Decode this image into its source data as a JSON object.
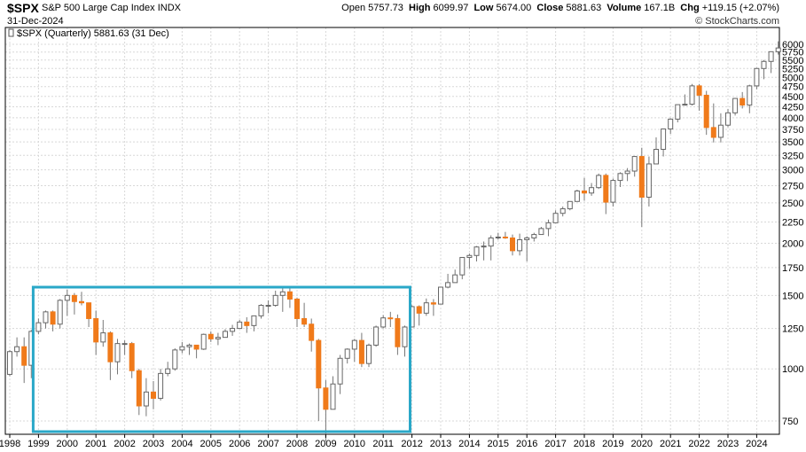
{
  "header": {
    "symbol": "$SPX",
    "name": "S&P 500 Large Cap Index",
    "exchange": "INDX",
    "date": "31-Dec-2024",
    "brand": "© StockCharts.com",
    "quote": {
      "open_label": "Open",
      "open": "5757.73",
      "high_label": "High",
      "high": "6099.97",
      "low_label": "Low",
      "low": "5674.00",
      "close_label": "Close",
      "close": "5881.63",
      "volume_label": "Volume",
      "volume": "167.1B",
      "chg_label": "Chg",
      "chg": "+119.15 (+2.07%)"
    }
  },
  "legend": {
    "text": "$SPX (Quarterly) 5881.63 (31 Dec)"
  },
  "colors": {
    "up": "#ffffff",
    "down": "#f07a1a",
    "wick": "#777777",
    "grid": "#d8d8d8",
    "highlight_box": "#2aa8c8"
  },
  "chart_data": {
    "type": "candlestick",
    "period": "quarterly",
    "y_axis": {
      "ticks": [
        750,
        1000,
        1250,
        1500,
        1750,
        2000,
        2250,
        2500,
        2750,
        3000,
        3250,
        3500,
        3750,
        4000,
        4250,
        4500,
        4750,
        5000,
        5250,
        5500,
        5750,
        6000
      ],
      "scale": "log",
      "ylim": [
        650,
        6300
      ]
    },
    "x_axis": {
      "ticks": [
        "1998",
        "1999",
        "2000",
        "2001",
        "2002",
        "2003",
        "2004",
        "2005",
        "2006",
        "2007",
        "2008",
        "2009",
        "2010",
        "2011",
        "2012",
        "2013",
        "2014",
        "2015",
        "2016",
        "2017",
        "2018",
        "2019",
        "2020",
        "2021",
        "2022",
        "2023",
        "2024"
      ]
    },
    "highlight": {
      "start": "1999-Q1",
      "end": "2011-Q4",
      "ymin": 750,
      "ymax": 1570
    },
    "start_quarter": "1998-Q1",
    "ohlc": [
      [
        970,
        1110,
        960,
        1100
      ],
      [
        1100,
        1190,
        1070,
        1130
      ],
      [
        1130,
        1190,
        925,
        1020
      ],
      [
        1020,
        1240,
        950,
        1230
      ],
      [
        1230,
        1320,
        1210,
        1290
      ],
      [
        1290,
        1380,
        1250,
        1370
      ],
      [
        1370,
        1380,
        1230,
        1280
      ],
      [
        1280,
        1470,
        1250,
        1460
      ],
      [
        1460,
        1550,
        1340,
        1500
      ],
      [
        1500,
        1520,
        1350,
        1450
      ],
      [
        1450,
        1530,
        1420,
        1440
      ],
      [
        1440,
        1440,
        1260,
        1320
      ],
      [
        1320,
        1380,
        1080,
        1160
      ],
      [
        1160,
        1310,
        1130,
        1220
      ],
      [
        1220,
        1230,
        940,
        1040
      ],
      [
        1040,
        1180,
        970,
        1150
      ],
      [
        1150,
        1170,
        1080,
        1150
      ],
      [
        1150,
        1160,
        950,
        990
      ],
      [
        990,
        1000,
        775,
        815
      ],
      [
        815,
        950,
        770,
        880
      ],
      [
        880,
        935,
        800,
        850
      ],
      [
        850,
        1000,
        840,
        975
      ],
      [
        975,
        1040,
        960,
        1000
      ],
      [
        1000,
        1120,
        990,
        1110
      ],
      [
        1110,
        1160,
        1090,
        1130
      ],
      [
        1130,
        1150,
        1080,
        1140
      ],
      [
        1140,
        1140,
        1060,
        1115
      ],
      [
        1115,
        1215,
        1110,
        1210
      ],
      [
        1210,
        1230,
        1160,
        1180
      ],
      [
        1180,
        1220,
        1140,
        1190
      ],
      [
        1190,
        1245,
        1190,
        1230
      ],
      [
        1230,
        1275,
        1200,
        1250
      ],
      [
        1250,
        1310,
        1250,
        1295
      ],
      [
        1295,
        1330,
        1220,
        1270
      ],
      [
        1270,
        1340,
        1230,
        1340
      ],
      [
        1340,
        1430,
        1320,
        1420
      ],
      [
        1420,
        1460,
        1360,
        1420
      ],
      [
        1420,
        1540,
        1410,
        1500
      ],
      [
        1500,
        1560,
        1370,
        1530
      ],
      [
        1530,
        1580,
        1400,
        1470
      ],
      [
        1470,
        1480,
        1260,
        1320
      ],
      [
        1320,
        1440,
        1260,
        1280
      ],
      [
        1280,
        1320,
        1100,
        1170
      ],
      [
        1170,
        1180,
        750,
        900
      ],
      [
        900,
        940,
        670,
        800
      ],
      [
        800,
        960,
        800,
        920
      ],
      [
        920,
        1080,
        870,
        1060
      ],
      [
        1060,
        1120,
        1030,
        1115
      ],
      [
        1115,
        1180,
        1040,
        1170
      ],
      [
        1170,
        1220,
        1010,
        1030
      ],
      [
        1030,
        1150,
        1010,
        1140
      ],
      [
        1140,
        1270,
        1130,
        1260
      ],
      [
        1260,
        1345,
        1250,
        1325
      ],
      [
        1325,
        1370,
        1260,
        1320
      ],
      [
        1320,
        1350,
        1080,
        1130
      ],
      [
        1130,
        1270,
        1070,
        1260
      ],
      [
        1260,
        1420,
        1260,
        1410
      ],
      [
        1410,
        1420,
        1270,
        1360
      ],
      [
        1360,
        1475,
        1340,
        1440
      ],
      [
        1440,
        1470,
        1340,
        1430
      ],
      [
        1430,
        1570,
        1430,
        1570
      ],
      [
        1570,
        1690,
        1560,
        1610
      ],
      [
        1610,
        1730,
        1630,
        1680
      ],
      [
        1680,
        1850,
        1640,
        1850
      ],
      [
        1850,
        1890,
        1740,
        1870
      ],
      [
        1870,
        1970,
        1810,
        1960
      ],
      [
        1960,
        2020,
        1820,
        1970
      ],
      [
        1970,
        2090,
        1820,
        2060
      ],
      [
        2060,
        2120,
        2040,
        2070
      ],
      [
        2070,
        2130,
        2050,
        2060
      ],
      [
        2060,
        2100,
        1870,
        1920
      ],
      [
        1920,
        2110,
        1870,
        2040
      ],
      [
        2040,
        2080,
        1810,
        2060
      ],
      [
        2060,
        2120,
        2020,
        2100
      ],
      [
        2100,
        2190,
        2140,
        2170
      ],
      [
        2170,
        2280,
        2080,
        2240
      ],
      [
        2240,
        2400,
        2250,
        2360
      ],
      [
        2360,
        2450,
        2320,
        2420
      ],
      [
        2420,
        2520,
        2400,
        2520
      ],
      [
        2520,
        2690,
        2550,
        2670
      ],
      [
        2670,
        2870,
        2530,
        2640
      ],
      [
        2640,
        2790,
        2600,
        2720
      ],
      [
        2720,
        2940,
        2700,
        2910
      ],
      [
        2910,
        2940,
        2350,
        2510
      ],
      [
        2510,
        2860,
        2450,
        2830
      ],
      [
        2830,
        2960,
        2730,
        2940
      ],
      [
        2940,
        3030,
        2820,
        2980
      ],
      [
        2980,
        3240,
        2890,
        3230
      ],
      [
        3230,
        3390,
        2190,
        2580
      ],
      [
        2580,
        3230,
        2450,
        3100
      ],
      [
        3100,
        3590,
        3100,
        3360
      ],
      [
        3360,
        3760,
        3230,
        3760
      ],
      [
        3760,
        3990,
        3660,
        3970
      ],
      [
        3970,
        4290,
        3900,
        4300
      ],
      [
        4300,
        4550,
        4300,
        4310
      ],
      [
        4310,
        4820,
        4280,
        4770
      ],
      [
        4770,
        4820,
        4160,
        4530
      ],
      [
        4530,
        4640,
        3640,
        3790
      ],
      [
        3790,
        4330,
        3490,
        3590
      ],
      [
        3590,
        4100,
        3490,
        3840
      ],
      [
        3840,
        4200,
        3800,
        4110
      ],
      [
        4110,
        4460,
        4050,
        4450
      ],
      [
        4450,
        4610,
        4210,
        4290
      ],
      [
        4290,
        4800,
        4100,
        4770
      ],
      [
        4770,
        5270,
        4680,
        5250
      ],
      [
        5250,
        5500,
        4950,
        5460
      ],
      [
        5460,
        5770,
        5120,
        5760
      ],
      [
        5760,
        6100,
        5670,
        5880
      ]
    ]
  }
}
